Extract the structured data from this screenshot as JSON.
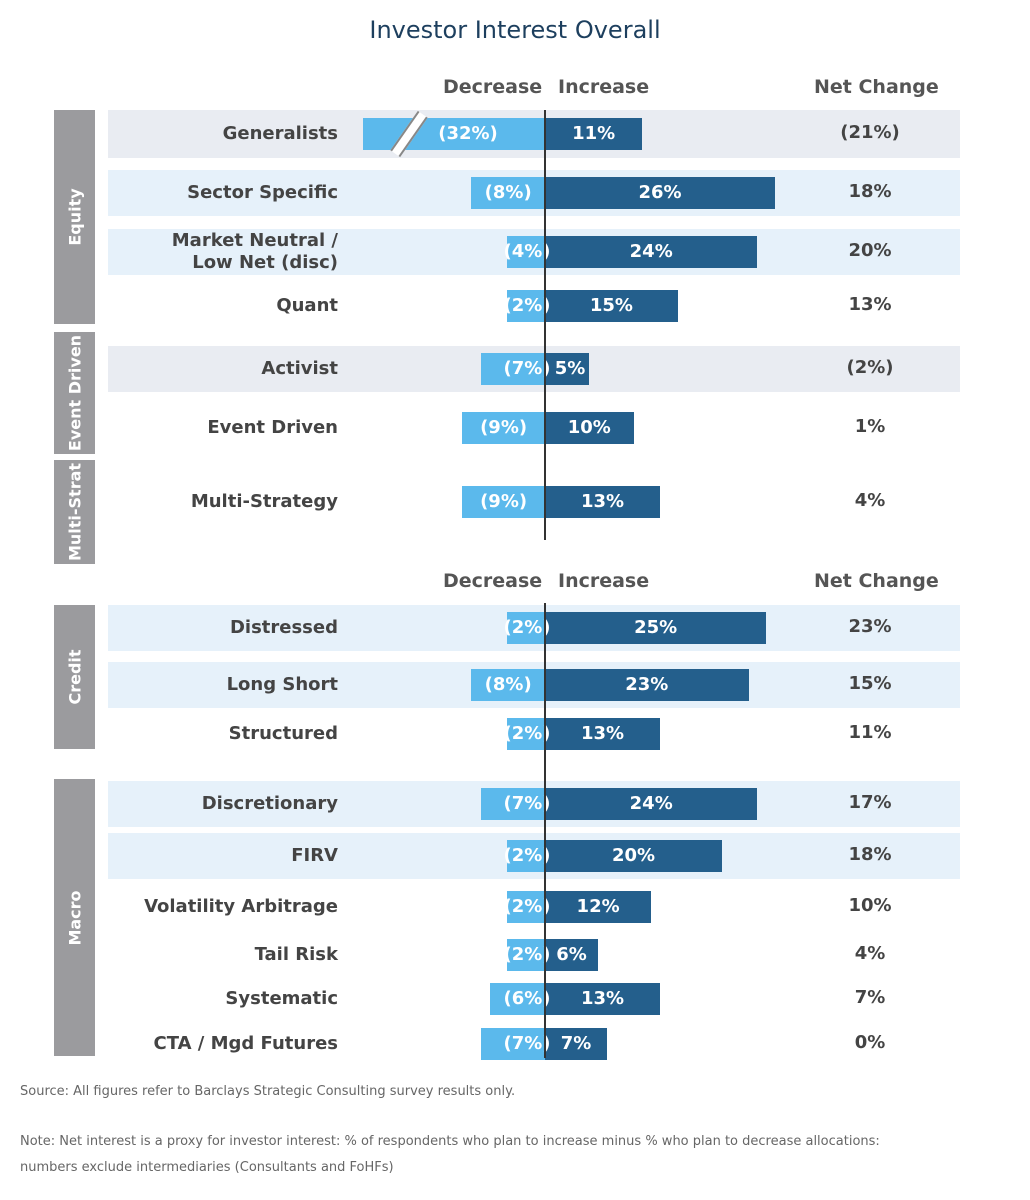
{
  "title": "Investor Interest Overall",
  "headers": {
    "decrease": "Decrease",
    "increase": "Increase",
    "net": "Net Change"
  },
  "groups": {
    "equity": "Equity",
    "event": "Event Driven",
    "multi": "Multi-Strat",
    "credit": "Credit",
    "macro": "Macro"
  },
  "notes": {
    "source": "Source: All figures refer to Barclays Strategic Consulting survey results only.",
    "note1": "Note: Net interest is a proxy for investor interest: % of respondents who plan to increase minus % who plan to decrease allocations:",
    "note2": "numbers exclude intermediaries (Consultants and FoHFs)"
  },
  "colors": {
    "decrease": "#5bb9ec",
    "increase": "#245f8c",
    "band_gray": "#e9ecf2",
    "band_blue": "#e6f1fa"
  },
  "chart_data": {
    "type": "bar",
    "title": "Investor Interest Overall",
    "series": [
      {
        "name": "Decrease",
        "values": [
          -32,
          -8,
          -4,
          -2,
          -7,
          -9,
          -9,
          -2,
          -8,
          -2,
          -7,
          -2,
          -2,
          -2,
          -6,
          -7
        ]
      },
      {
        "name": "Increase",
        "values": [
          11,
          26,
          24,
          15,
          5,
          10,
          13,
          25,
          23,
          13,
          24,
          20,
          12,
          6,
          13,
          7
        ]
      },
      {
        "name": "Net Change",
        "values": [
          -21,
          18,
          20,
          13,
          -2,
          1,
          4,
          23,
          15,
          11,
          17,
          18,
          10,
          4,
          7,
          0
        ]
      }
    ],
    "rows": [
      {
        "group": "Equity",
        "label": "Generalists",
        "dec": -32,
        "inc": 11,
        "net": -21,
        "dec_text": "(32%)",
        "inc_text": "11%",
        "net_text": "(21%)",
        "band": "gray",
        "axis_break": true
      },
      {
        "group": "Equity",
        "label": "Sector Specific",
        "dec": -8,
        "inc": 26,
        "net": 18,
        "dec_text": "(8%)",
        "inc_text": "26%",
        "net_text": "18%",
        "band": "blue"
      },
      {
        "group": "Equity",
        "label": "Market Neutral / Low Net (disc)",
        "label1": "Market Neutral /",
        "label2": "Low Net (disc)",
        "dec": -4,
        "inc": 24,
        "net": 20,
        "dec_text": "(4%)",
        "inc_text": "24%",
        "net_text": "20%",
        "band": "blue"
      },
      {
        "group": "Equity",
        "label": "Quant",
        "dec": -2,
        "inc": 15,
        "net": 13,
        "dec_text": "(2%)",
        "inc_text": "15%",
        "net_text": "13%",
        "band": "none"
      },
      {
        "group": "Event Driven",
        "label": "Activist",
        "dec": -7,
        "inc": 5,
        "net": -2,
        "dec_text": "(7%)",
        "inc_text": "5%",
        "net_text": "(2%)",
        "band": "gray"
      },
      {
        "group": "Event Driven",
        "label": "Event Driven",
        "dec": -9,
        "inc": 10,
        "net": 1,
        "dec_text": "(9%)",
        "inc_text": "10%",
        "net_text": "1%",
        "band": "none"
      },
      {
        "group": "Multi-Strat",
        "label": "Multi-Strategy",
        "dec": -9,
        "inc": 13,
        "net": 4,
        "dec_text": "(9%)",
        "inc_text": "13%",
        "net_text": "4%",
        "band": "none"
      },
      {
        "group": "Credit",
        "label": "Distressed",
        "dec": -2,
        "inc": 25,
        "net": 23,
        "dec_text": "(2%)",
        "inc_text": "25%",
        "net_text": "23%",
        "band": "blue"
      },
      {
        "group": "Credit",
        "label": "Long Short",
        "dec": -8,
        "inc": 23,
        "net": 15,
        "dec_text": "(8%)",
        "inc_text": "23%",
        "net_text": "15%",
        "band": "blue"
      },
      {
        "group": "Credit",
        "label": "Structured",
        "dec": -2,
        "inc": 13,
        "net": 11,
        "dec_text": "(2%)",
        "inc_text": "13%",
        "net_text": "11%",
        "band": "none"
      },
      {
        "group": "Macro",
        "label": "Discretionary",
        "dec": -7,
        "inc": 24,
        "net": 17,
        "dec_text": "(7%)",
        "inc_text": "24%",
        "net_text": "17%",
        "band": "blue"
      },
      {
        "group": "Macro",
        "label": "FIRV",
        "dec": -2,
        "inc": 20,
        "net": 18,
        "dec_text": "(2%)",
        "inc_text": "20%",
        "net_text": "18%",
        "band": "blue"
      },
      {
        "group": "Macro",
        "label": "Volatility Arbitrage",
        "dec": -2,
        "inc": 12,
        "net": 10,
        "dec_text": "(2%)",
        "inc_text": "12%",
        "net_text": "10%",
        "band": "none"
      },
      {
        "group": "Macro",
        "label": "Tail Risk",
        "dec": -2,
        "inc": 6,
        "net": 4,
        "dec_text": "(2%)",
        "inc_text": "6%",
        "net_text": "4%",
        "band": "none"
      },
      {
        "group": "Macro",
        "label": "Systematic",
        "dec": -6,
        "inc": 13,
        "net": 7,
        "dec_text": "(6%)",
        "inc_text": "13%",
        "net_text": "7%",
        "band": "none"
      },
      {
        "group": "Macro",
        "label": "CTA / Mgd Futures",
        "dec": -7,
        "inc": 7,
        "net": 0,
        "dec_text": "(7%)",
        "inc_text": "7%",
        "net_text": "0%",
        "band": "none"
      }
    ]
  }
}
